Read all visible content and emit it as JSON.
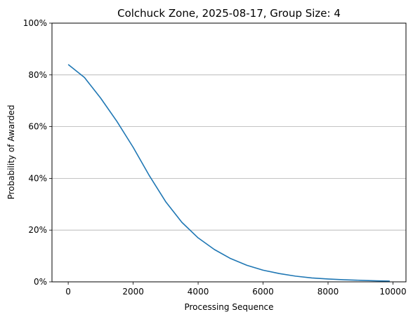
{
  "chart_data": {
    "type": "line",
    "title": "Colchuck Zone, 2025-08-17, Group Size: 4",
    "xlabel": "Processing Sequence",
    "ylabel": "Probability of Awarded",
    "xlim": [
      -500,
      10400
    ],
    "ylim": [
      0,
      1
    ],
    "x_ticks": [
      {
        "value": 0,
        "label": "0"
      },
      {
        "value": 2000,
        "label": "2000"
      },
      {
        "value": 4000,
        "label": "4000"
      },
      {
        "value": 6000,
        "label": "6000"
      },
      {
        "value": 8000,
        "label": "8000"
      },
      {
        "value": 10000,
        "label": "10000"
      }
    ],
    "y_ticks": [
      {
        "value": 0,
        "label": "0%"
      },
      {
        "value": 0.2,
        "label": "20%"
      },
      {
        "value": 0.4,
        "label": "40%"
      },
      {
        "value": 0.6,
        "label": "60%"
      },
      {
        "value": 0.8,
        "label": "80%"
      },
      {
        "value": 1.0,
        "label": "100%"
      }
    ],
    "grid": "horizontal",
    "line_color": "#1f77b4",
    "series": [
      {
        "x": [
          0,
          500,
          1000,
          1500,
          2000,
          2500,
          3000,
          3500,
          4000,
          4500,
          5000,
          5500,
          6000,
          6500,
          7000,
          7500,
          8000,
          8500,
          9000,
          9500,
          9900
        ],
        "y": [
          0.84,
          0.79,
          0.71,
          0.62,
          0.52,
          0.41,
          0.31,
          0.23,
          0.17,
          0.125,
          0.09,
          0.064,
          0.045,
          0.032,
          0.022,
          0.015,
          0.011,
          0.008,
          0.006,
          0.004,
          0.003
        ]
      }
    ]
  }
}
